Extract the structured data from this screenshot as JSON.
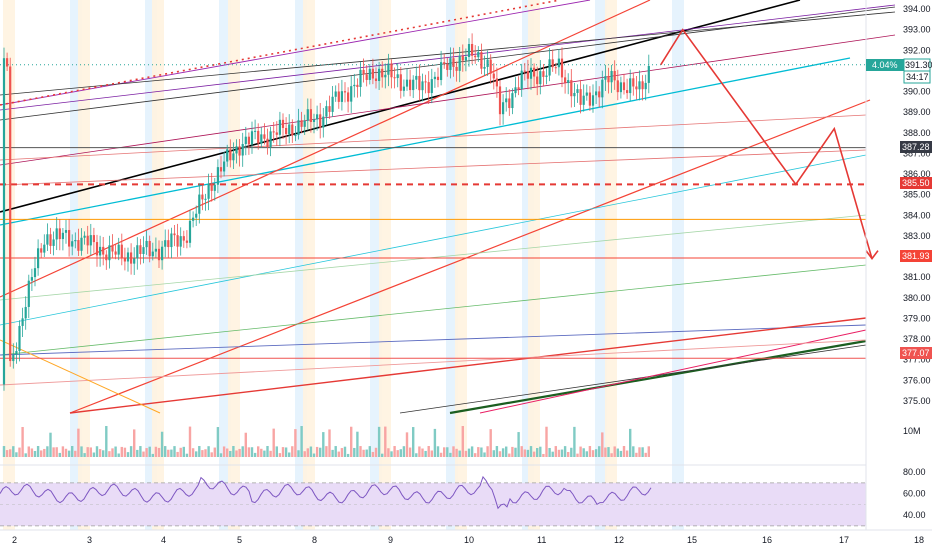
{
  "chart_data": {
    "type": "candlestick",
    "price_axis": {
      "range": [
        374.3,
        394.5
      ],
      "ticks": [
        "394.00",
        "393.00",
        "392.00",
        "391.00",
        "390.00",
        "389.00",
        "388.00",
        "387.00",
        "386.00",
        "385.00",
        "384.00",
        "383.00",
        "382.00",
        "381.00",
        "380.00",
        "379.00",
        "378.00",
        "377.00",
        "376.00",
        "375.00"
      ]
    },
    "volume_axis": {
      "tick": "10M"
    },
    "rsi_axis": {
      "ticks": [
        "80.00",
        "60.00",
        "40.00"
      ],
      "upper_band": 70,
      "lower_band": 30,
      "range": [
        28,
        82
      ]
    },
    "x_axis": {
      "ticks": [
        "2",
        "3",
        "4",
        "5",
        "8",
        "9",
        "10",
        "11",
        "12",
        "15",
        "16",
        "17",
        "18"
      ]
    },
    "price_labels": {
      "pct_change": "4.04%",
      "last_price": "391.30",
      "countdown": "34:17",
      "level_387": "387.28",
      "level_385": "385.50",
      "level_381": "381.93",
      "level_377": "377.07"
    },
    "horizontal_levels": [
      {
        "price": 387.28,
        "color": "#555555",
        "style": "solid"
      },
      {
        "price": 385.5,
        "color": "#e53935",
        "style": "dashed"
      },
      {
        "price": 381.93,
        "color": "#f44336",
        "style": "solid"
      },
      {
        "price": 377.07,
        "color": "#ef5350",
        "style": "solid"
      },
      {
        "price": 383.8,
        "color": "#ff9800",
        "style": "solid"
      }
    ],
    "colors": {
      "up": "#26a69a",
      "down": "#ef5350",
      "rsi_line": "#7e57c2",
      "rsi_band": "#e9dcf7",
      "session_orange": "#fff3e0",
      "session_blue": "#e3f2fd",
      "last_price_badge": "#26a69a"
    },
    "projected_path": [
      {
        "x": "12.6",
        "y": 391.3
      },
      {
        "x": "12.9",
        "y": 393.0
      },
      {
        "x": "16.4",
        "y": 385.5
      },
      {
        "x": "16.9",
        "y": 388.2
      },
      {
        "x": "17.4",
        "y": 381.9
      }
    ]
  }
}
